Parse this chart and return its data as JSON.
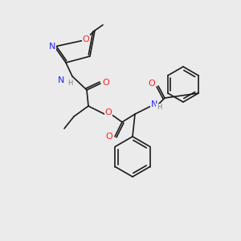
{
  "bg_color": "#ebebeb",
  "bond_color": "#1a1a1a",
  "atom_colors": {
    "N": "#2020ff",
    "O": "#ff2020",
    "H": "#808080",
    "C": "#1a1a1a"
  },
  "font_size_atom": 7.5,
  "font_size_methyl": 6.5,
  "line_width": 1.2
}
